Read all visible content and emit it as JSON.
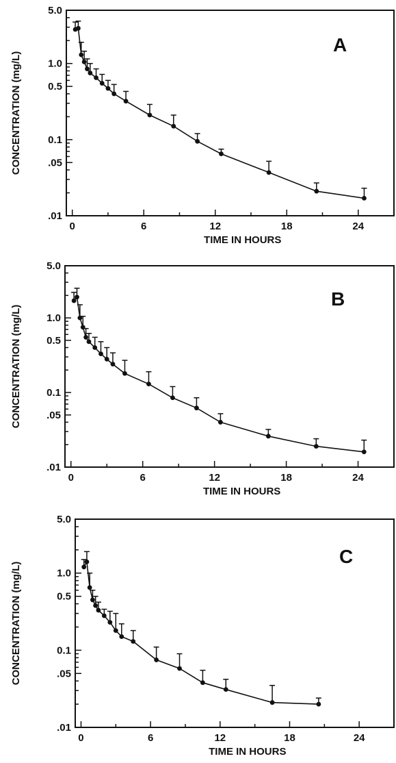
{
  "chart_data": [
    {
      "type": "line",
      "panel_label": "A",
      "xlabel": "TIME IN HOURS",
      "ylabel": "CONCENTRATION   (mg/L)",
      "y_scale": "log",
      "xlim": [
        -0.5,
        27
      ],
      "ylim": [
        0.01,
        5.0
      ],
      "xticks": [
        "0",
        "6",
        "12",
        "18",
        "24"
      ],
      "yticks": [
        "5.0",
        "1.0",
        "0.5",
        "0.1",
        ".05",
        ".01"
      ],
      "series": [
        {
          "x": [
            0.25,
            0.5,
            0.75,
            1.0,
            1.25,
            1.5,
            2.0,
            2.5,
            3.0,
            3.5,
            4.5,
            6.5,
            8.5,
            10.5,
            12.5,
            16.5,
            20.5,
            24.5
          ],
          "y": [
            2.8,
            2.9,
            1.3,
            1.05,
            0.85,
            0.75,
            0.65,
            0.55,
            0.47,
            0.4,
            0.32,
            0.21,
            0.15,
            0.095,
            0.065,
            0.037,
            0.021,
            0.017
          ],
          "err_upper": [
            3.5,
            3.6,
            1.9,
            1.45,
            1.15,
            1.0,
            0.85,
            0.72,
            0.6,
            0.53,
            0.43,
            0.29,
            0.21,
            0.12,
            0.075,
            0.052,
            0.027,
            0.023
          ]
        }
      ]
    },
    {
      "type": "line",
      "panel_label": "B",
      "xlabel": "TIME IN HOURS",
      "ylabel": "CONCENTRATION   (mg/L)",
      "y_scale": "log",
      "xlim": [
        -0.5,
        27
      ],
      "ylim": [
        0.01,
        5.0
      ],
      "xticks": [
        "0",
        "6",
        "12",
        "18",
        "24"
      ],
      "yticks": [
        "5.0",
        "1.0",
        "0.5",
        "0.1",
        ".05",
        ".01"
      ],
      "series": [
        {
          "x": [
            0.25,
            0.5,
            0.75,
            1.0,
            1.25,
            1.5,
            2.0,
            2.5,
            3.0,
            3.5,
            4.5,
            6.5,
            8.5,
            10.5,
            12.5,
            16.5,
            20.5,
            24.5
          ],
          "y": [
            1.7,
            1.9,
            1.0,
            0.75,
            0.55,
            0.48,
            0.4,
            0.33,
            0.28,
            0.24,
            0.18,
            0.13,
            0.085,
            0.062,
            0.04,
            0.026,
            0.019,
            0.016
          ],
          "err_upper": [
            2.2,
            2.5,
            1.5,
            1.05,
            0.72,
            0.62,
            0.55,
            0.48,
            0.4,
            0.34,
            0.27,
            0.19,
            0.12,
            0.085,
            0.052,
            0.032,
            0.024,
            0.023
          ]
        }
      ]
    },
    {
      "type": "line",
      "panel_label": "C",
      "xlabel": "TIME IN HOURS",
      "ylabel": "CONCENTRATION   (mg/L)",
      "y_scale": "log",
      "xlim": [
        -0.5,
        27
      ],
      "ylim": [
        0.01,
        5.0
      ],
      "xticks": [
        "0",
        "6",
        "12",
        "18",
        "24"
      ],
      "yticks": [
        "5.0",
        "1.0",
        "0.5",
        "0.1",
        ".05",
        ".01"
      ],
      "series": [
        {
          "x": [
            0.25,
            0.5,
            0.75,
            1.0,
            1.25,
            1.5,
            2.0,
            2.5,
            3.0,
            3.5,
            4.5,
            6.5,
            8.5,
            10.5,
            12.5,
            16.5,
            20.5
          ],
          "y": [
            1.2,
            1.4,
            0.65,
            0.45,
            0.38,
            0.33,
            0.28,
            0.23,
            0.18,
            0.15,
            0.13,
            0.075,
            0.058,
            0.038,
            0.031,
            0.021,
            0.02
          ],
          "err_upper": [
            1.5,
            1.9,
            1.0,
            0.6,
            0.5,
            0.42,
            0.34,
            0.32,
            0.3,
            0.22,
            0.18,
            0.11,
            0.09,
            0.055,
            0.042,
            0.035,
            0.024
          ]
        }
      ]
    }
  ]
}
